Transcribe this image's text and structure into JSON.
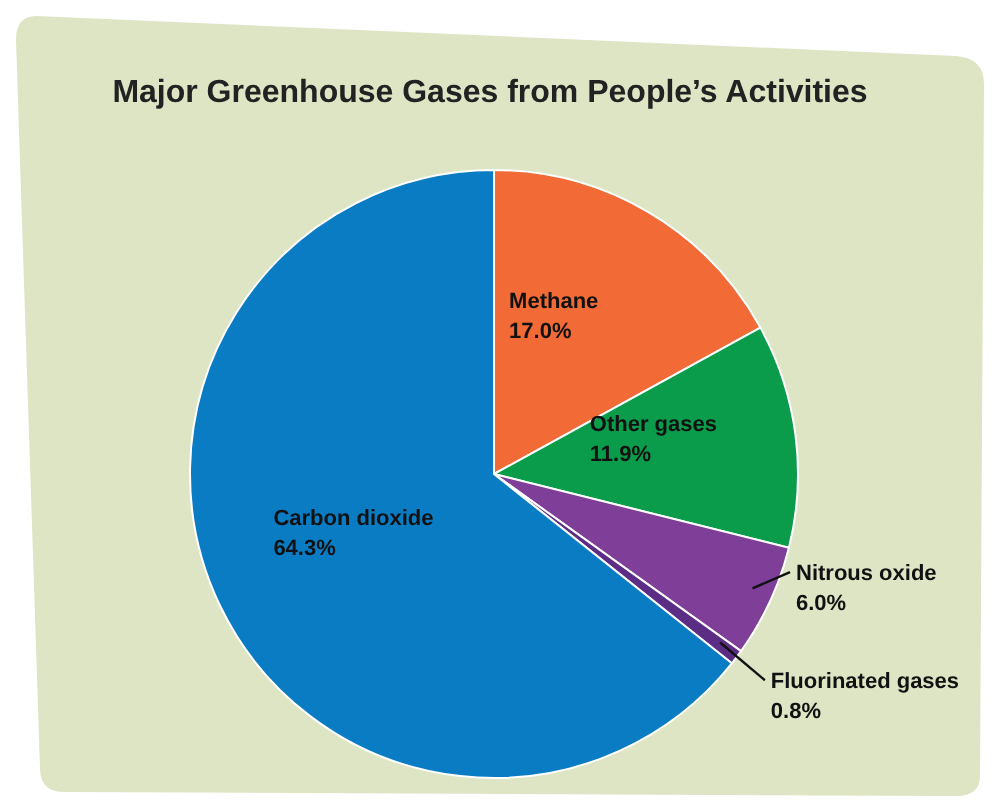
{
  "chart_data": {
    "type": "pie",
    "title": "Major Greenhouse Gases from People’s Activities",
    "categories": [
      "Methane",
      "Other gases",
      "Nitrous oxide",
      "Fluorinated gases",
      "Carbon dioxide"
    ],
    "values": [
      17.0,
      11.9,
      6.0,
      0.8,
      64.3
    ],
    "value_labels": [
      "17.0%",
      "11.9%",
      "6.0%",
      "0.8%",
      "64.3%"
    ],
    "colors": [
      "#f26a36",
      "#0a9b4b",
      "#7f3f98",
      "#5b2d84",
      "#0a7cc4"
    ],
    "legend": false
  }
}
